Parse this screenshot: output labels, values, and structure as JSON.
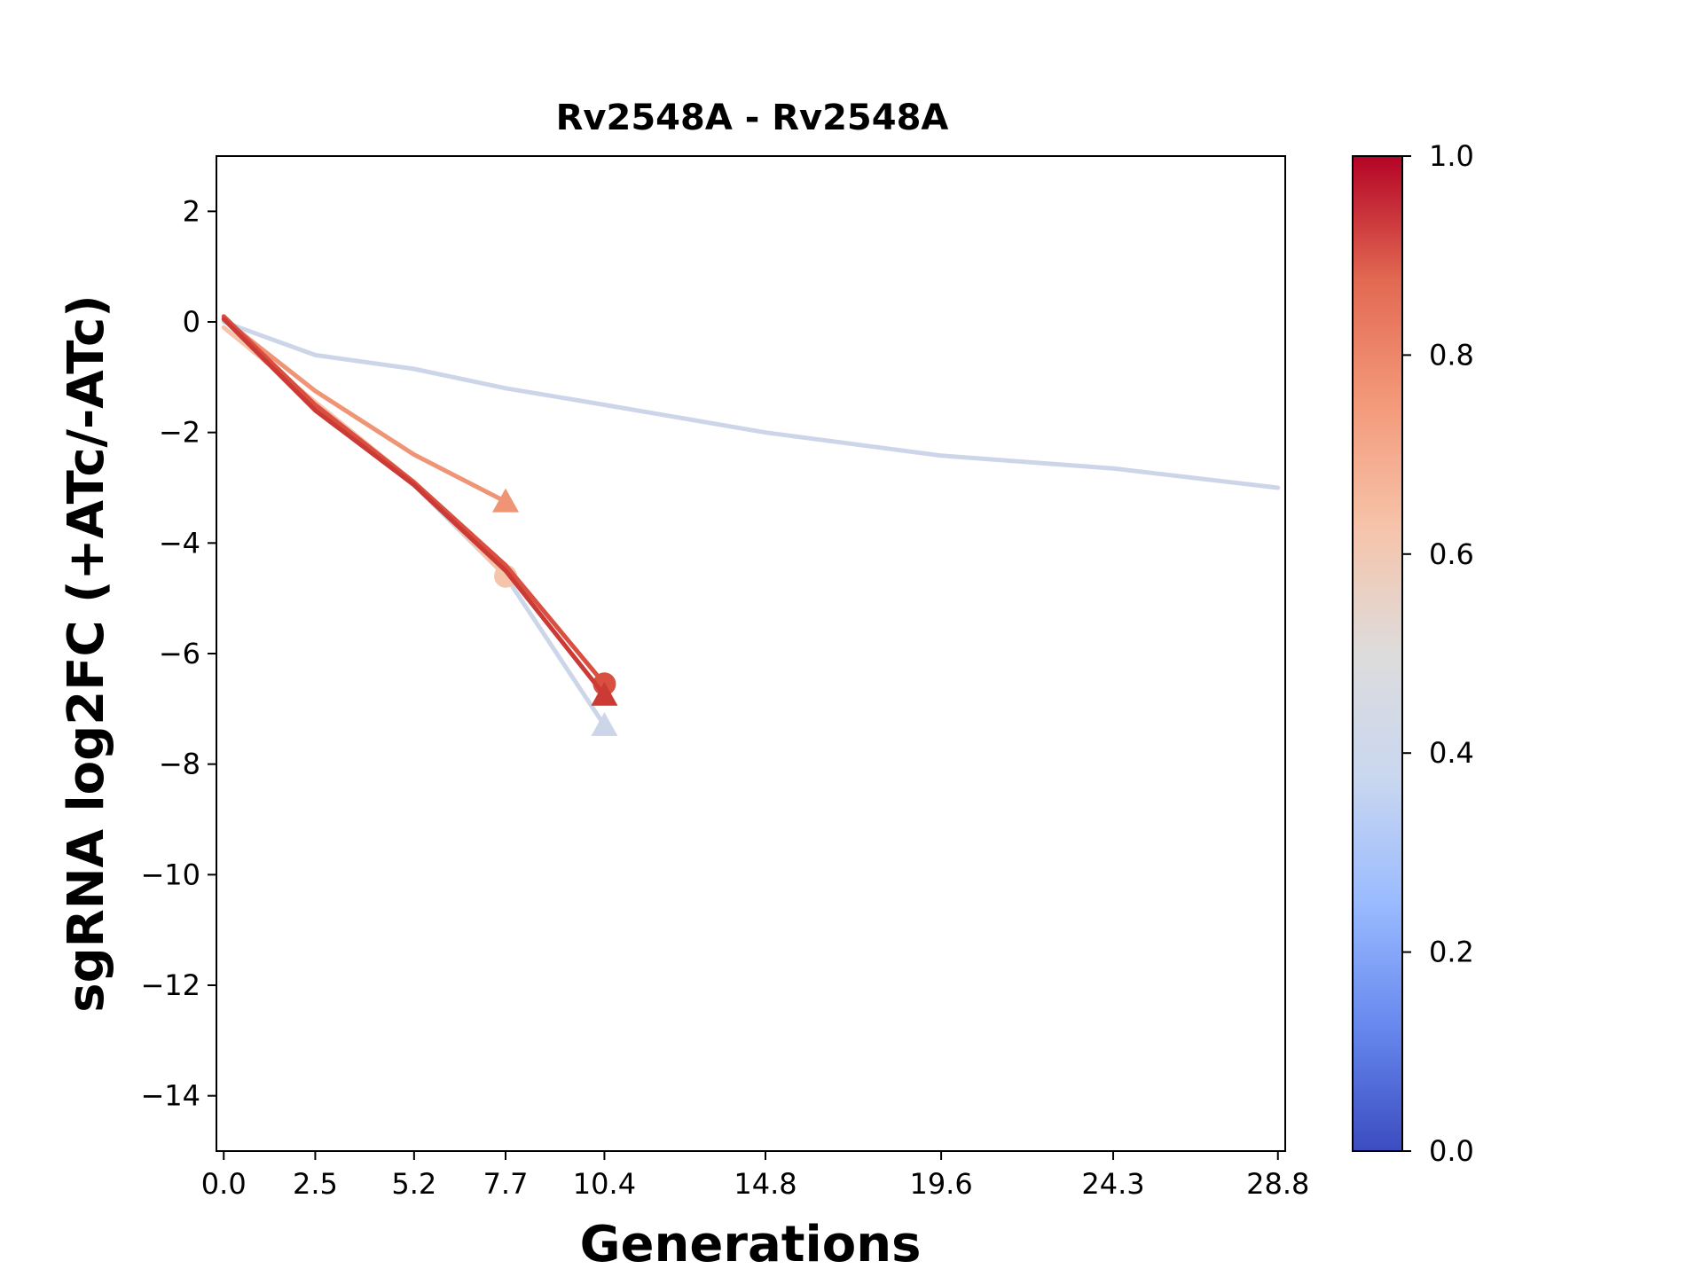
{
  "chart_data": {
    "type": "line",
    "title": "Rv2548A - Rv2548A",
    "xlabel": "Generations",
    "ylabel": "sgRNA log2FC (+ATc/-ATc)",
    "xlim": [
      -0.2,
      29.0
    ],
    "ylim": [
      -15,
      3
    ],
    "x_ticks": [
      0.0,
      2.5,
      5.2,
      7.7,
      10.4,
      14.8,
      19.6,
      24.3,
      28.8
    ],
    "x_tick_labels": [
      "0.0",
      "2.5",
      "5.2",
      "7.7",
      "10.4",
      "14.8",
      "19.6",
      "24.3",
      "28.8"
    ],
    "y_ticks": [
      2,
      0,
      -2,
      -4,
      -6,
      -8,
      -10,
      -12,
      -14
    ],
    "y_tick_labels": [
      "2",
      "0",
      "−2",
      "−4",
      "−6",
      "−8",
      "−10",
      "−12",
      "−14"
    ],
    "series": [
      {
        "color": "#cdd6e8",
        "marker": "none",
        "x": [
          0.0,
          2.5,
          5.2,
          7.7,
          10.4,
          14.8,
          19.6,
          24.3,
          28.8
        ],
        "y": [
          0.0,
          -0.6,
          -0.85,
          -1.2,
          -1.5,
          -2.0,
          -2.42,
          -2.65,
          -3.0
        ]
      },
      {
        "color": "#cdd6e8",
        "marker": "triangle",
        "x": [
          0.0,
          2.5,
          5.2,
          7.7,
          10.4
        ],
        "y": [
          0.05,
          -1.6,
          -2.95,
          -4.6,
          -7.3
        ]
      },
      {
        "color": "#f4c4ab",
        "marker": "circle",
        "x": [
          0.0,
          2.5,
          5.2,
          7.7
        ],
        "y": [
          -0.1,
          -1.45,
          -2.9,
          -4.6
        ]
      },
      {
        "color": "#ef9475",
        "marker": "triangle",
        "x": [
          0.0,
          2.5,
          5.2,
          7.7
        ],
        "y": [
          0.05,
          -1.25,
          -2.4,
          -3.25
        ]
      },
      {
        "color": "#d95040",
        "marker": "circle",
        "x": [
          0.0,
          2.5,
          5.2,
          7.7,
          10.4
        ],
        "y": [
          0.1,
          -1.5,
          -2.9,
          -4.4,
          -6.55
        ]
      },
      {
        "color": "#cc3a36",
        "marker": "triangle",
        "x": [
          0.0,
          2.5,
          5.2,
          7.7,
          10.4
        ],
        "y": [
          0.05,
          -1.6,
          -2.95,
          -4.5,
          -6.75
        ]
      }
    ],
    "colorbar": {
      "colormap": "coolwarm",
      "range": [
        0.0,
        1.0
      ],
      "ticks": [
        0.0,
        0.2,
        0.4,
        0.6,
        0.8,
        1.0
      ],
      "tick_labels": [
        "0.0",
        "0.2",
        "0.4",
        "0.6",
        "0.8",
        "1.0"
      ],
      "colors": [
        "#3b4cc0",
        "#6788ee",
        "#9abbff",
        "#c9d7f0",
        "#dddcdc",
        "#f6c4ab",
        "#f49a7b",
        "#e26952",
        "#b40426"
      ]
    },
    "grid": false,
    "legend": "none"
  }
}
